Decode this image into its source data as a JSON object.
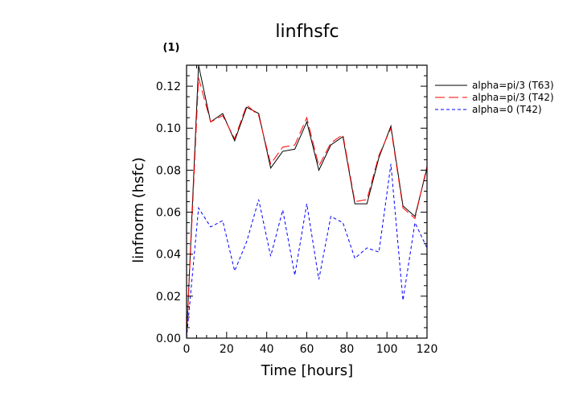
{
  "chart_data": {
    "type": "line",
    "title": "linfhsfc",
    "panel_label": "(1)",
    "xlabel": "Time [hours]",
    "ylabel": "linfnorm (hsfc)",
    "xlim": [
      0,
      120
    ],
    "ylim": [
      0,
      0.13
    ],
    "xticks": [
      0,
      20,
      40,
      60,
      80,
      100,
      120
    ],
    "yticks": [
      0.0,
      0.02,
      0.04,
      0.06,
      0.08,
      0.1,
      0.12
    ],
    "ytick_labels": [
      "0.00",
      "0.02",
      "0.04",
      "0.06",
      "0.08",
      "0.10",
      "0.12"
    ],
    "legend_position": "right",
    "x": [
      0,
      6,
      12,
      18,
      24,
      30,
      36,
      42,
      48,
      54,
      60,
      66,
      72,
      78,
      84,
      90,
      96,
      102,
      108,
      114,
      120
    ],
    "series": [
      {
        "name": "alpha=pi/3 (T63)",
        "color": "#000000",
        "dash": "solid",
        "values": [
          0.0,
          0.13,
          0.103,
          0.107,
          0.094,
          0.11,
          0.107,
          0.081,
          0.089,
          0.09,
          0.103,
          0.08,
          0.092,
          0.096,
          0.064,
          0.064,
          0.086,
          0.101,
          0.063,
          0.058,
          0.081
        ]
      },
      {
        "name": "alpha=pi/3 (T42)",
        "color": "#ff0000",
        "dash": "long-dash",
        "values": [
          0.0,
          0.124,
          0.103,
          0.106,
          0.095,
          0.111,
          0.106,
          0.083,
          0.091,
          0.092,
          0.105,
          0.082,
          0.093,
          0.097,
          0.065,
          0.066,
          0.087,
          0.1,
          0.062,
          0.057,
          0.082
        ]
      },
      {
        "name": "alpha=0 (T42)",
        "color": "#0000ff",
        "dash": "short-dash",
        "values": [
          0.0,
          0.062,
          0.053,
          0.056,
          0.032,
          0.046,
          0.066,
          0.039,
          0.061,
          0.03,
          0.064,
          0.028,
          0.058,
          0.055,
          0.038,
          0.043,
          0.041,
          0.083,
          0.018,
          0.055,
          0.043
        ]
      }
    ]
  }
}
